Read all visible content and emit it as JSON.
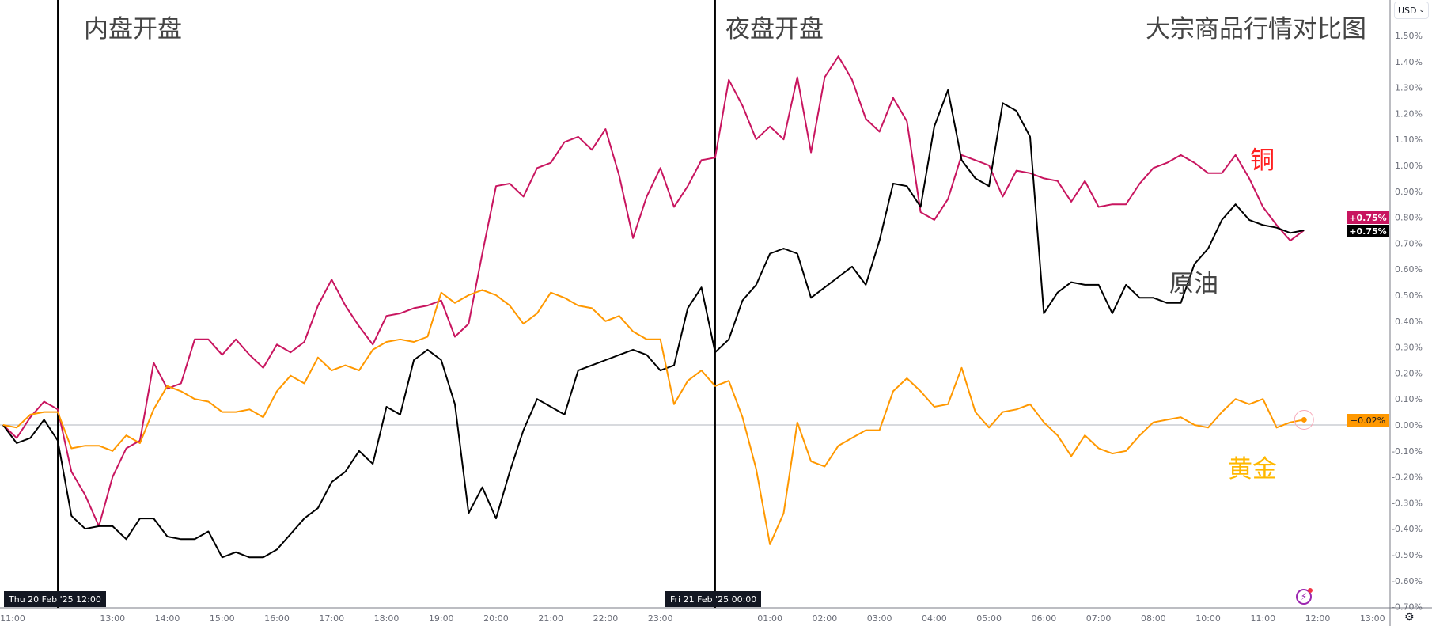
{
  "chart_data": {
    "type": "line",
    "title": "大宗商品行情对比图",
    "start": "Thu 20 Feb '25 11:00",
    "interval_minutes": 15,
    "ylim": [
      -0.7,
      1.55
    ],
    "y_unit": "%",
    "y_ticks": [
      "1.50%",
      "1.40%",
      "1.30%",
      "1.20%",
      "1.10%",
      "1.00%",
      "0.90%",
      "0.80%",
      "0.70%",
      "0.60%",
      "0.50%",
      "0.40%",
      "0.30%",
      "0.20%",
      "0.10%",
      "0.00%",
      "-0.10%",
      "-0.20%",
      "-0.30%",
      "-0.40%",
      "-0.50%",
      "-0.60%",
      "-0.70%"
    ],
    "x_ticks": [
      "11:00",
      "13:00",
      "14:00",
      "15:00",
      "16:00",
      "17:00",
      "18:00",
      "19:00",
      "20:00",
      "21:00",
      "22:00",
      "23:00",
      "01:00",
      "02:00",
      "03:00",
      "04:00",
      "05:00",
      "06:00",
      "07:00",
      "08:00",
      "10:00",
      "11:00",
      "12:00",
      "13:00"
    ],
    "grid": false,
    "series": [
      {
        "name": "铜",
        "color": "#c8155f",
        "last_label": "+0.75%",
        "values": [
          0,
          -0.05,
          0.03,
          0.09,
          0.06,
          -0.18,
          -0.27,
          -0.39,
          -0.2,
          -0.09,
          -0.06,
          0.24,
          0.14,
          0.16,
          0.33,
          0.33,
          0.27,
          0.33,
          0.27,
          0.22,
          0.31,
          0.28,
          0.32,
          0.46,
          0.56,
          0.46,
          0.38,
          0.31,
          0.42,
          0.43,
          0.45,
          0.46,
          0.48,
          0.34,
          0.39,
          0.66,
          0.92,
          0.93,
          0.88,
          0.99,
          1.01,
          1.09,
          1.11,
          1.06,
          1.14,
          0.96,
          0.72,
          0.88,
          0.99,
          0.84,
          0.92,
          1.02,
          1.03,
          1.33,
          1.23,
          1.1,
          1.15,
          1.1,
          1.34,
          1.05,
          1.34,
          1.42,
          1.33,
          1.18,
          1.13,
          1.26,
          1.17,
          0.82,
          0.79,
          0.87,
          1.04,
          1.02,
          1.0,
          0.88,
          0.98,
          0.97,
          0.95,
          0.94,
          0.86,
          0.94,
          0.84,
          0.85,
          0.85,
          0.93,
          0.99,
          1.01,
          1.04,
          1.01,
          0.97,
          0.97,
          1.04,
          0.95,
          0.84,
          0.77,
          0.71,
          0.75
        ]
      },
      {
        "name": "原油",
        "color": "#000000",
        "last_label": "+0.75%",
        "values": [
          0,
          -0.07,
          -0.05,
          0.02,
          -0.06,
          -0.35,
          -0.4,
          -0.39,
          -0.39,
          -0.44,
          -0.36,
          -0.36,
          -0.43,
          -0.44,
          -0.44,
          -0.41,
          -0.51,
          -0.49,
          -0.51,
          -0.51,
          -0.48,
          -0.42,
          -0.36,
          -0.32,
          -0.22,
          -0.18,
          -0.1,
          -0.15,
          0.07,
          0.04,
          0.25,
          0.29,
          0.25,
          0.08,
          -0.34,
          -0.24,
          -0.36,
          -0.18,
          -0.02,
          0.1,
          0.07,
          0.04,
          0.21,
          0.23,
          0.25,
          0.27,
          0.29,
          0.27,
          0.21,
          0.23,
          0.45,
          0.53,
          0.28,
          0.33,
          0.48,
          0.54,
          0.66,
          0.68,
          0.66,
          0.49,
          0.53,
          0.57,
          0.61,
          0.54,
          0.71,
          0.93,
          0.92,
          0.84,
          1.15,
          1.29,
          1.02,
          0.95,
          0.92,
          1.24,
          1.21,
          1.11,
          0.43,
          0.51,
          0.55,
          0.54,
          0.54,
          0.43,
          0.54,
          0.49,
          0.49,
          0.47,
          0.47,
          0.62,
          0.68,
          0.79,
          0.85,
          0.79,
          0.77,
          0.76,
          0.74,
          0.75
        ]
      },
      {
        "name": "黄金",
        "color": "#ff9800",
        "last_label": "+0.02%",
        "values": [
          0,
          -0.01,
          0.04,
          0.05,
          0.05,
          -0.09,
          -0.08,
          -0.08,
          -0.1,
          -0.04,
          -0.07,
          0.06,
          0.15,
          0.13,
          0.1,
          0.09,
          0.05,
          0.05,
          0.06,
          0.03,
          0.13,
          0.19,
          0.16,
          0.26,
          0.21,
          0.23,
          0.21,
          0.29,
          0.32,
          0.33,
          0.32,
          0.34,
          0.51,
          0.47,
          0.5,
          0.52,
          0.5,
          0.46,
          0.39,
          0.43,
          0.51,
          0.49,
          0.46,
          0.45,
          0.4,
          0.42,
          0.36,
          0.33,
          0.33,
          0.08,
          0.17,
          0.21,
          0.15,
          0.17,
          0.03,
          -0.17,
          -0.46,
          -0.34,
          0.01,
          -0.14,
          -0.16,
          -0.08,
          -0.05,
          -0.02,
          -0.02,
          0.13,
          0.18,
          0.13,
          0.07,
          0.08,
          0.22,
          0.05,
          -0.01,
          0.05,
          0.06,
          0.08,
          0.01,
          -0.04,
          -0.12,
          -0.04,
          -0.09,
          -0.11,
          -0.1,
          -0.04,
          0.01,
          0.02,
          0.03,
          0.0,
          -0.01,
          0.05,
          0.1,
          0.08,
          0.1,
          -0.01,
          0.01,
          0.02
        ]
      }
    ],
    "annotations": {
      "domestic_open": "内盘开盘",
      "night_open": "夜盘开盘",
      "copper": "铜",
      "crude": "原油",
      "gold": "黄金"
    },
    "marker_labels": {
      "left": "Thu 20 Feb '25   12:00",
      "right": "Fri 21 Feb '25   00:00"
    },
    "annotation_colors": {
      "copper": "#ff2020",
      "crude": "#444444",
      "gold": "#ffb800"
    }
  },
  "toolbar": {
    "currency": "USD",
    "currency_icon": "chevron-down-icon",
    "settings_icon": "gear-icon",
    "lightning_icon": "lightning-icon"
  }
}
